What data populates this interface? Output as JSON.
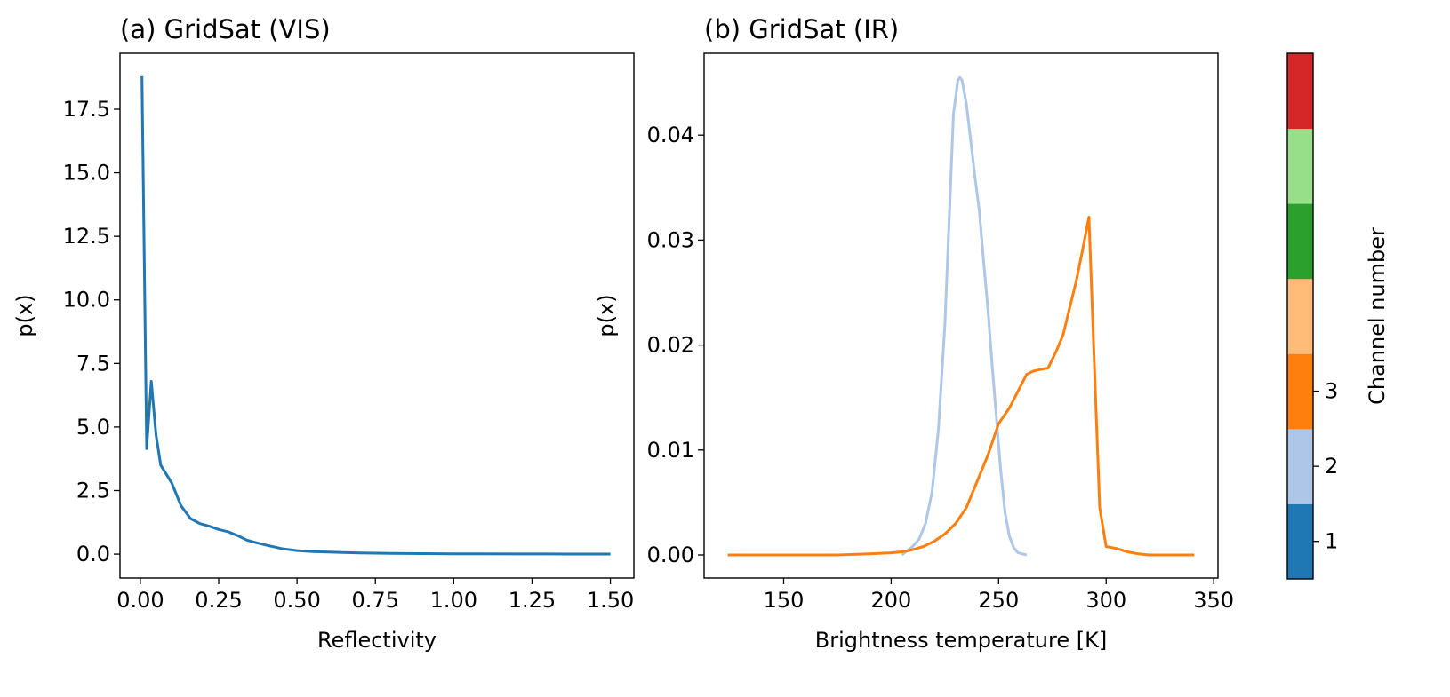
{
  "chart_data": [
    {
      "type": "line",
      "title": "(a) GridSat (VIS)",
      "xlabel": "Reflectivity",
      "ylabel": "p(x)",
      "xlim": [
        -0.065,
        1.575
      ],
      "ylim": [
        -0.94,
        19.7
      ],
      "xticks": [
        0.0,
        0.25,
        0.5,
        0.75,
        1.0,
        1.25,
        1.5
      ],
      "xtick_labels": [
        "0.00",
        "0.25",
        "0.50",
        "0.75",
        "1.00",
        "1.25",
        "1.50"
      ],
      "yticks": [
        0.0,
        2.5,
        5.0,
        7.5,
        10.0,
        12.5,
        15.0,
        17.5
      ],
      "ytick_labels": [
        "0.0",
        "2.5",
        "5.0",
        "7.5",
        "10.0",
        "12.5",
        "15.0",
        "17.5"
      ],
      "grid": false,
      "series": [
        {
          "channel": 1,
          "color": "#1f77b4",
          "x": [
            0.005,
            0.02,
            0.035,
            0.05,
            0.065,
            0.1,
            0.13,
            0.16,
            0.19,
            0.22,
            0.25,
            0.28,
            0.31,
            0.34,
            0.37,
            0.4,
            0.45,
            0.5,
            0.55,
            0.6,
            0.7,
            0.8,
            0.9,
            1.0,
            1.1,
            1.2,
            1.3,
            1.4,
            1.5
          ],
          "y": [
            18.8,
            4.15,
            6.8,
            4.7,
            3.5,
            2.8,
            1.9,
            1.4,
            1.2,
            1.1,
            0.97,
            0.88,
            0.73,
            0.55,
            0.45,
            0.36,
            0.22,
            0.14,
            0.1,
            0.08,
            0.05,
            0.03,
            0.02,
            0.01,
            0.01,
            0.005,
            0.005,
            0.003,
            0.002
          ]
        }
      ]
    },
    {
      "type": "line",
      "title": "(b) GridSat (IR)",
      "xlabel": "Brightness temperature [K]",
      "ylabel": "p(x)",
      "xlim": [
        113,
        352
      ],
      "ylim": [
        -0.0022,
        0.0478
      ],
      "xticks": [
        150,
        200,
        250,
        300,
        350
      ],
      "xtick_labels": [
        "150",
        "200",
        "250",
        "300",
        "350"
      ],
      "yticks": [
        0.0,
        0.01,
        0.02,
        0.03,
        0.04
      ],
      "ytick_labels": [
        "0.00",
        "0.01",
        "0.02",
        "0.03",
        "0.04"
      ],
      "grid": false,
      "series": [
        {
          "channel": 2,
          "color": "#aec7e8",
          "x": [
            205,
            210,
            213,
            216,
            219,
            222,
            225,
            227,
            229,
            231,
            232,
            233,
            235,
            237,
            239,
            241,
            243,
            245,
            247,
            249,
            251,
            253,
            255,
            257,
            259,
            261,
            263
          ],
          "y": [
            0.0,
            0.0008,
            0.0015,
            0.003,
            0.006,
            0.012,
            0.022,
            0.032,
            0.042,
            0.0452,
            0.0455,
            0.0452,
            0.043,
            0.0395,
            0.036,
            0.0328,
            0.028,
            0.0235,
            0.018,
            0.013,
            0.008,
            0.004,
            0.0018,
            0.0007,
            0.0002,
            0.0001,
            0.0
          ]
        },
        {
          "channel": 3,
          "color": "#ff7f0e",
          "x": [
            124,
            150,
            175,
            190,
            200,
            205,
            210,
            215,
            220,
            225,
            230,
            235,
            240,
            245,
            250,
            255,
            260,
            263,
            266,
            270,
            273,
            277,
            280,
            283,
            286,
            289,
            292,
            294,
            297,
            300,
            305,
            310,
            315,
            320,
            330,
            341
          ],
          "y": [
            0.0,
            0.0,
            0.0,
            0.0001,
            0.0002,
            0.0003,
            0.0005,
            0.0008,
            0.0013,
            0.002,
            0.003,
            0.0045,
            0.007,
            0.0095,
            0.0125,
            0.014,
            0.016,
            0.0172,
            0.0175,
            0.0177,
            0.0178,
            0.0195,
            0.021,
            0.0235,
            0.026,
            0.029,
            0.0322,
            0.021,
            0.0045,
            0.0008,
            0.0006,
            0.0003,
            0.0001,
            0.0,
            0.0,
            0.0
          ]
        }
      ]
    }
  ],
  "colorbar": {
    "label": "Channel number",
    "colors": [
      "#1f77b4",
      "#aec7e8",
      "#ff7f0e",
      "#ffbb78",
      "#2ca02c",
      "#98df8a",
      "#d62728"
    ],
    "tick_values": [
      1,
      2,
      3
    ],
    "tick_labels": [
      "1",
      "2",
      "3"
    ],
    "range": [
      0.5,
      7.5
    ]
  }
}
